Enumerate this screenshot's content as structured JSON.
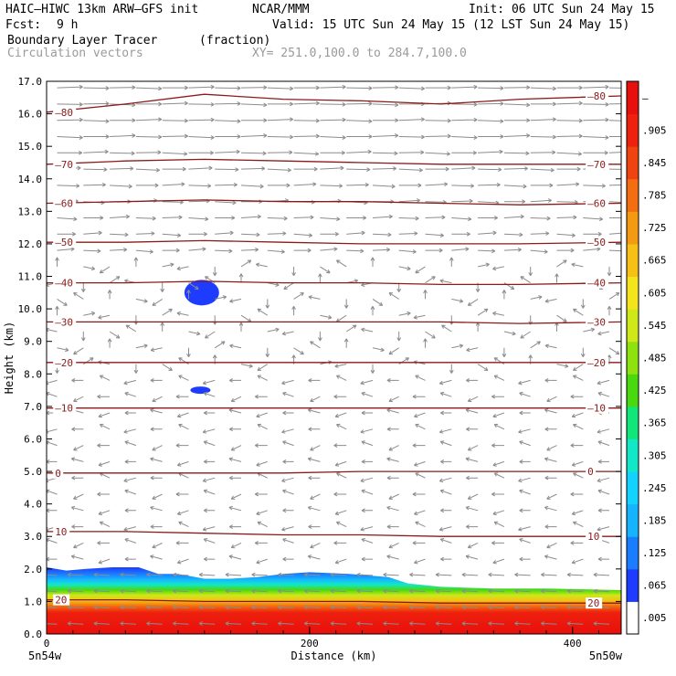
{
  "header": {
    "model": "HAIC–HIWC 13km ARW–GFS init",
    "org": "NCAR/MMM",
    "init": "Init: 06 UTC Sun 24 May 15",
    "fcst_label": "Fcst:",
    "fcst_value": "9 h",
    "valid": "Valid: 15 UTC Sun 24 May 15 (12 LST Sun 24 May 15)",
    "field": "Boundary Layer Tracer",
    "field_units": "(fraction)",
    "vectors": "Circulation vectors",
    "xsec": "XY= 251.0,100.0 to 284.7,100.0"
  },
  "colors": {
    "contour": "#8b1a1a",
    "vector": "#8c8c8c",
    "axis": "#000000"
  },
  "chart_data": {
    "type": "heatmap",
    "xlabel": "Distance (km)",
    "ylabel": "Height (km)",
    "xlim": [
      0,
      437
    ],
    "ylim": [
      0,
      17
    ],
    "x_ticks": [
      "0",
      "200",
      "400"
    ],
    "x_tick_values": [
      0,
      200,
      400
    ],
    "y_ticks": [
      "0.0",
      "1.0",
      "2.0",
      "3.0",
      "4.0",
      "5.0",
      "6.0",
      "7.0",
      "8.0",
      "9.0",
      "10.0",
      "11.0",
      "12.0",
      "13.0",
      "14.0",
      "15.0",
      "16.0",
      "17.0"
    ],
    "x_end_labels": {
      "left": "5n54w",
      "right": "5n50w"
    },
    "colorbar": {
      "labels": [
        ".005",
        ".065",
        ".125",
        ".185",
        ".245",
        ".305",
        ".365",
        ".425",
        ".485",
        ".545",
        ".605",
        ".665",
        ".725",
        ".785",
        ".845",
        ".905",
        "–"
      ],
      "levels": [
        0.005,
        0.065,
        0.125,
        0.185,
        0.245,
        0.305,
        0.365,
        0.425,
        0.485,
        0.545,
        0.605,
        0.665,
        0.725,
        0.785,
        0.845,
        0.905,
        0.965
      ],
      "colors": [
        "#ffffff",
        "#1e3cff",
        "#1a7cff",
        "#16b4ff",
        "#13d2ff",
        "#12e8c8",
        "#12e67a",
        "#4ad80f",
        "#8ee20f",
        "#cfe81a",
        "#f4e41c",
        "#f6c016",
        "#f49a12",
        "#f26e10",
        "#f04410",
        "#ee200e",
        "#e8100c"
      ]
    },
    "temperature_contours": [
      {
        "label": "–80",
        "values": [
          16.05,
          16.3,
          16.6,
          16.45,
          16.4,
          16.3,
          16.45,
          16.55
        ]
      },
      {
        "label": "–70",
        "values": [
          14.45,
          14.55,
          14.6,
          14.55,
          14.5,
          14.45,
          14.45,
          14.45
        ]
      },
      {
        "label": "–60",
        "values": [
          13.25,
          13.3,
          13.35,
          13.3,
          13.3,
          13.25,
          13.2,
          13.25
        ]
      },
      {
        "label": "–50",
        "values": [
          12.05,
          12.05,
          12.1,
          12.05,
          12.0,
          12.0,
          12.0,
          12.05
        ]
      },
      {
        "label": "–40",
        "values": [
          10.8,
          10.8,
          10.85,
          10.8,
          10.8,
          10.75,
          10.75,
          10.8
        ]
      },
      {
        "label": "–30",
        "values": [
          9.6,
          9.6,
          9.6,
          9.6,
          9.6,
          9.6,
          9.55,
          9.6
        ]
      },
      {
        "label": "–20",
        "values": [
          8.35,
          8.35,
          8.35,
          8.35,
          8.35,
          8.35,
          8.35,
          8.35
        ]
      },
      {
        "label": "–10",
        "values": [
          6.95,
          6.95,
          6.95,
          6.95,
          6.95,
          6.95,
          6.95,
          6.95
        ]
      },
      {
        "label": "0",
        "values": [
          4.95,
          4.95,
          4.95,
          4.95,
          5.0,
          5.0,
          5.0,
          5.0
        ]
      },
      {
        "label": "10",
        "values": [
          3.15,
          3.15,
          3.1,
          3.05,
          3.05,
          3.0,
          3.0,
          3.0
        ]
      },
      {
        "label": "20",
        "values": [
          1.05,
          1.05,
          1.0,
          1.0,
          1.0,
          0.95,
          0.95,
          0.95
        ]
      }
    ],
    "contour_x": [
      0,
      60,
      120,
      180,
      240,
      300,
      360,
      437
    ],
    "boundary_layer_top": {
      "x": [
        0,
        15,
        30,
        50,
        70,
        85,
        100,
        120,
        140,
        160,
        180,
        200,
        230,
        260,
        275,
        300,
        340,
        380,
        437
      ],
      "y": [
        2.05,
        1.95,
        2.0,
        2.05,
        2.05,
        1.85,
        1.85,
        1.7,
        1.7,
        1.75,
        1.85,
        1.9,
        1.85,
        1.75,
        1.55,
        1.45,
        1.4,
        1.4,
        1.35
      ]
    },
    "tracer_blobs": [
      {
        "x": 118,
        "y": 10.5,
        "value": 0.065
      },
      {
        "x": 117,
        "y": 7.5,
        "value": 0.065
      }
    ]
  }
}
